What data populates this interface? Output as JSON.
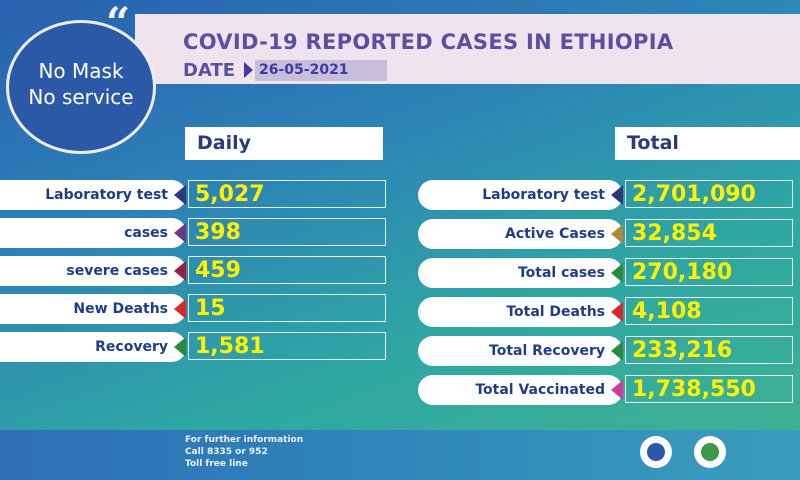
{
  "header": {
    "title": "COVID-19 REPORTED CASES IN ETHIOPIA",
    "date_label": "DATE",
    "date_value": "26-05-2021"
  },
  "badge": {
    "line1": "No Mask",
    "line2": "No service",
    "quote_mark": "“"
  },
  "daily": {
    "heading": "Daily",
    "rows": [
      {
        "label": "Laboratory test",
        "value": "5,027",
        "marker_color": "#2a3a7a"
      },
      {
        "label": "cases",
        "value": "398",
        "marker_color": "#6a3a8a"
      },
      {
        "label": "severe cases",
        "value": "459",
        "marker_color": "#9a2040"
      },
      {
        "label": "New Deaths",
        "value": "15",
        "marker_color": "#d42a2a"
      },
      {
        "label": "Recovery",
        "value": "1,581",
        "marker_color": "#2a8a3a"
      }
    ]
  },
  "total": {
    "heading": "Total",
    "rows": [
      {
        "label": "Laboratory test",
        "value": "2,701,090",
        "marker_color": "#2a3a7a"
      },
      {
        "label": "Active Cases",
        "value": "32,854",
        "marker_color": "#b08a3a"
      },
      {
        "label": "Total cases",
        "value": "270,180",
        "marker_color": "#2a8a3a"
      },
      {
        "label": "Total Deaths",
        "value": "4,108",
        "marker_color": "#d42a2a"
      },
      {
        "label": "Total Recovery",
        "value": "233,216",
        "marker_color": "#2a8a3a"
      },
      {
        "label": "Total Vaccinated",
        "value": "1,738,550",
        "marker_color": "#d43a9a"
      }
    ]
  },
  "footer": {
    "line1": "For further information",
    "line2": "Call 8335 or 952",
    "line3": "Toll free line"
  }
}
